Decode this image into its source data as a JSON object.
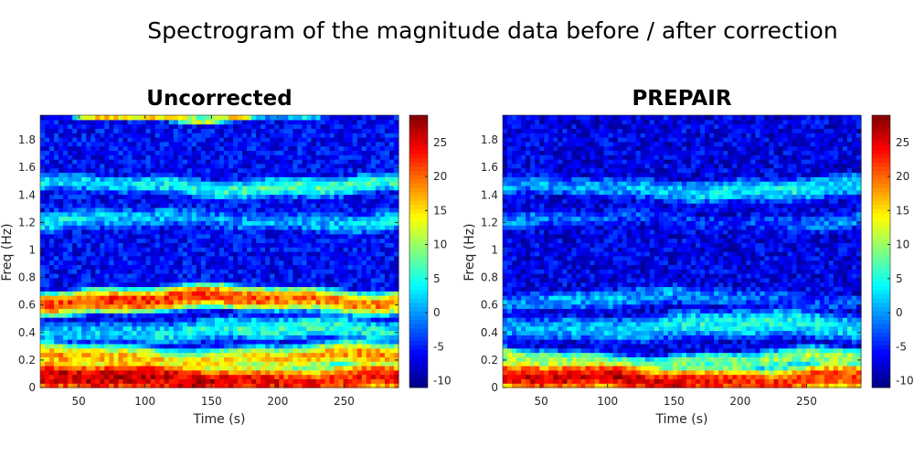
{
  "figure": {
    "title": "Spectrogram of the magnitude data before / after correction"
  },
  "chart_data": [
    {
      "type": "heatmap",
      "title": "Uncorrected",
      "xlabel": "Time (s)",
      "ylabel": "Freq (Hz)",
      "xlim": [
        21,
        291
      ],
      "ylim": [
        0,
        1.98
      ],
      "xticks": [
        50,
        100,
        150,
        200,
        250
      ],
      "yticks": [
        0,
        0.2,
        0.4,
        0.6,
        0.8,
        1,
        1.2,
        1.4,
        1.6,
        1.8
      ],
      "colormap": "jet",
      "clim": [
        -11,
        29
      ],
      "colorbar_ticks": [
        -10,
        -5,
        0,
        5,
        10,
        15,
        20,
        25
      ],
      "bands": [
        {
          "freq": 0.06,
          "peak_db": 25,
          "width": 0.05
        },
        {
          "freq": 0.22,
          "peak_db": 17,
          "width": 0.04
        },
        {
          "freq": 0.42,
          "peak_db": 4,
          "width": 0.05
        },
        {
          "freq": 0.64,
          "peak_db": 21,
          "width": 0.035
        },
        {
          "freq": 1.22,
          "peak_db": 2,
          "width": 0.05
        },
        {
          "freq": 1.47,
          "peak_db": 5,
          "width": 0.04
        },
        {
          "freq": 1.98,
          "peak_db": 14,
          "width": 0.012
        }
      ],
      "baseline_db": -6
    },
    {
      "type": "heatmap",
      "title": "PREPAIR",
      "xlabel": "Time (s)",
      "ylabel": "Freq (Hz)",
      "xlim": [
        21,
        291
      ],
      "ylim": [
        0,
        1.98
      ],
      "xticks": [
        50,
        100,
        150,
        200,
        250
      ],
      "yticks": [
        0,
        0.2,
        0.4,
        0.6,
        0.8,
        1,
        1.2,
        1.4,
        1.6,
        1.8
      ],
      "colormap": "jet",
      "clim": [
        -11,
        29
      ],
      "colorbar_ticks": [
        -10,
        -5,
        0,
        5,
        10,
        15,
        20,
        25
      ],
      "bands": [
        {
          "freq": 0.06,
          "peak_db": 24,
          "width": 0.045
        },
        {
          "freq": 0.2,
          "peak_db": 10,
          "width": 0.035
        },
        {
          "freq": 0.45,
          "peak_db": 3,
          "width": 0.06
        },
        {
          "freq": 0.65,
          "peak_db": -1,
          "width": 0.05
        },
        {
          "freq": 1.22,
          "peak_db": -2,
          "width": 0.05
        },
        {
          "freq": 1.45,
          "peak_db": 2,
          "width": 0.05
        }
      ],
      "baseline_db": -7
    }
  ]
}
